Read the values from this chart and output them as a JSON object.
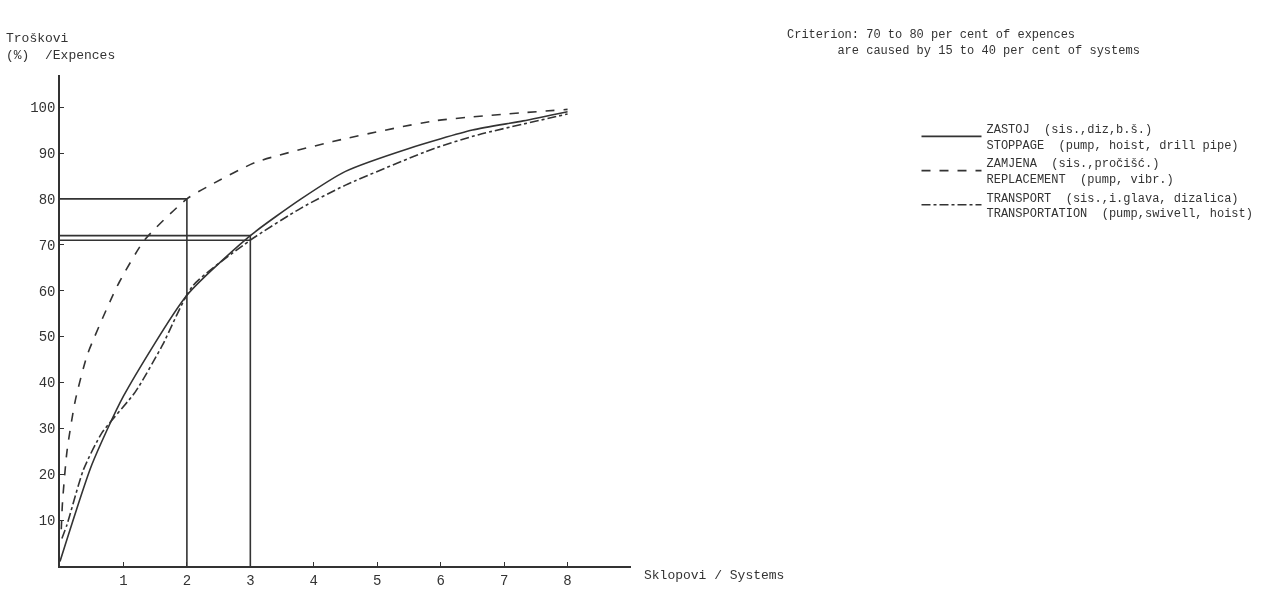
{
  "chart_data": {
    "type": "line",
    "ylabel": "Troškovi\n(%)  /Expences",
    "xlabel": "Sklopovi / Systems",
    "annotations": [
      "Criterion: 70 to 80 per cent of expences\n       are caused by 15 to 40 per cent of systems"
    ],
    "xlim": [
      0,
      9
    ],
    "ylim": [
      0,
      107
    ],
    "xticks": [
      1,
      2,
      3,
      4,
      5,
      6,
      7,
      8
    ],
    "yticks": [
      10,
      20,
      30,
      40,
      50,
      60,
      70,
      80,
      90,
      100
    ],
    "legend": "right",
    "marker": "none",
    "series": [
      {
        "name": "ZASTOJ  (sis.,diz,b.š.)\nSTOPPAGE  (pump, hoist, drill pipe)",
        "color": "#333333",
        "line_style": "solid",
        "x": [
          0,
          0.5,
          1,
          2,
          3,
          3.8,
          4.5,
          5.5,
          6.5,
          7.3,
          8
        ],
        "values": [
          1,
          22,
          37,
          59,
          72,
          80,
          86,
          91,
          95,
          97,
          99
        ]
      },
      {
        "name": "ZAMJENA  (sis.,pročišć.)\nREPLACEMENT  (pump, vibr.)",
        "color": "#333333",
        "line_style": "dashed",
        "x": [
          0.02,
          0.04,
          0.11,
          0.24,
          0.43,
          0.8,
          0.94,
          1.33,
          2,
          2.37,
          3.09,
          4.3,
          5.9,
          8
        ],
        "values": [
          8,
          14,
          25,
          36,
          46,
          58,
          62,
          71,
          80,
          83,
          88,
          92.5,
          97,
          99.5
        ]
      },
      {
        "name": "TRANSPORT  (sis.,i.glava, dizalica)\nTRANSPORTATION  (pump,swivell, hoist)",
        "color": "#333333",
        "line_style": "dashdot",
        "x": [
          0.03,
          0.11,
          0.37,
          0.66,
          1.19,
          1.61,
          2.09,
          3,
          3.8,
          4.5,
          5.9,
          6.6,
          8
        ],
        "values": [
          6,
          9,
          21,
          29,
          38,
          48,
          61,
          71,
          78,
          83,
          91,
          94,
          98.5
        ]
      },
      {
        "color": "#333333",
        "line_style": "solid",
        "x": [
          0,
          2,
          2
        ],
        "values": [
          80,
          80,
          0
        ]
      },
      {
        "color": "#333333",
        "line_style": "solid",
        "x": [
          0,
          3,
          3
        ],
        "values": [
          72,
          72,
          0
        ]
      },
      {
        "color": "#333333",
        "line_style": "solid",
        "x": [
          0,
          3
        ],
        "values": [
          71,
          71
        ]
      }
    ]
  }
}
